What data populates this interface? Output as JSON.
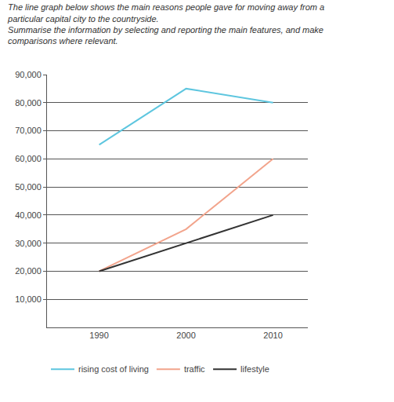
{
  "chart_data": {
    "type": "line",
    "title": "The line graph below shows the main reasons people gave for moving away from a particular capital city to the countryside.",
    "subtitle": "Summarise the information by selecting and reporting the main features, and make comparisons where relevant.",
    "x": [
      1990,
      2000,
      2010
    ],
    "series": [
      {
        "name": "rising cost of living",
        "color": "#5ec6df",
        "values": [
          65000,
          85000,
          80000
        ]
      },
      {
        "name": "traffic",
        "color": "#f2a48c",
        "values": [
          20000,
          35000,
          60000
        ]
      },
      {
        "name": "lifestyle",
        "color": "#333333",
        "values": [
          20000,
          30000,
          40000
        ]
      }
    ],
    "xlim": [
      1984,
      2014
    ],
    "xticks": [
      1990,
      2000,
      2010
    ],
    "ylim": [
      0,
      90000
    ],
    "yticks": [
      {
        "value": 10000,
        "label": "10,000"
      },
      {
        "value": 20000,
        "label": "20,000"
      },
      {
        "value": 30000,
        "label": "30,000"
      },
      {
        "value": 40000,
        "label": "40,000"
      },
      {
        "value": 50000,
        "label": "50,000"
      },
      {
        "value": 60000,
        "label": "60,000"
      },
      {
        "value": 70000,
        "label": "70,000"
      },
      {
        "value": 80000,
        "label": "80,000"
      },
      {
        "value": 90000,
        "label": "90,000"
      }
    ],
    "grid": true,
    "legend": "bottom"
  }
}
